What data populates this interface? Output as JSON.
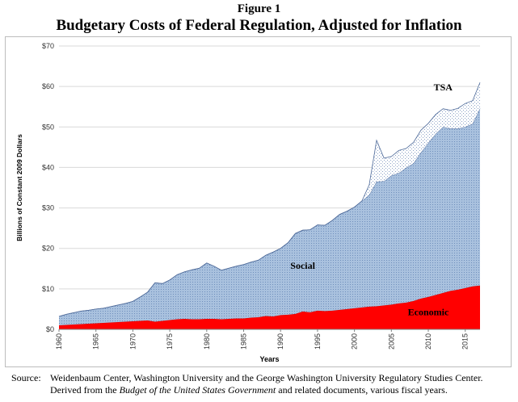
{
  "figure_label": "Figure 1",
  "title": "Budgetary Costs of Federal Regulation, Adjusted for Inflation",
  "source": {
    "label": "Source:",
    "line1": "Weidenbaum Center, Washington University and the George Washington University Regulatory Studies Center.",
    "line2_a": "Derived from the ",
    "line2_italic": "Budget of the United States Government",
    "line2_b": " and related documents, various fiscal years."
  },
  "colors": {
    "economic": "#ff0000",
    "social": "#9db7d8",
    "social_dot": "#6f8fbc",
    "tsa": "#ffffff",
    "outline": "#4f6b9a"
  },
  "chart_data": {
    "type": "area",
    "stacked": true,
    "xlabel": "Years",
    "ylabel": "Billions of Constant 2009 Dollars",
    "xlim": [
      1960,
      2017
    ],
    "ylim": [
      0,
      70
    ],
    "yticks": [
      "$0",
      "$10",
      "$20",
      "$30",
      "$40",
      "$50",
      "$60",
      "$70"
    ],
    "ytick_values": [
      0,
      10,
      20,
      30,
      40,
      50,
      60,
      70
    ],
    "xticks": [
      "1960",
      "1965",
      "1970",
      "1975",
      "1980",
      "1985",
      "1990",
      "1995",
      "2000",
      "2005",
      "2010",
      "2015"
    ],
    "xtick_values": [
      1960,
      1965,
      1970,
      1975,
      1980,
      1985,
      1990,
      1995,
      2000,
      2005,
      2010,
      2015
    ],
    "grid": "horizontal",
    "x": [
      1960,
      1961,
      1962,
      1963,
      1964,
      1965,
      1966,
      1967,
      1968,
      1969,
      1970,
      1971,
      1972,
      1973,
      1974,
      1975,
      1976,
      1977,
      1978,
      1979,
      1980,
      1981,
      1982,
      1983,
      1984,
      1985,
      1986,
      1987,
      1988,
      1989,
      1990,
      1991,
      1992,
      1993,
      1994,
      1995,
      1996,
      1997,
      1998,
      1999,
      2000,
      2001,
      2002,
      2003,
      2004,
      2005,
      2006,
      2007,
      2008,
      2009,
      2010,
      2011,
      2012,
      2013,
      2014,
      2015,
      2016,
      2017
    ],
    "series": [
      {
        "name": "Economic",
        "values": [
          1.0,
          1.1,
          1.2,
          1.3,
          1.4,
          1.5,
          1.6,
          1.7,
          1.8,
          1.9,
          2.0,
          2.1,
          2.2,
          1.9,
          2.1,
          2.3,
          2.5,
          2.6,
          2.5,
          2.5,
          2.6,
          2.6,
          2.5,
          2.6,
          2.7,
          2.7,
          2.9,
          3.0,
          3.3,
          3.2,
          3.5,
          3.6,
          3.8,
          4.4,
          4.2,
          4.6,
          4.5,
          4.6,
          4.8,
          5.0,
          5.2,
          5.4,
          5.6,
          5.7,
          5.9,
          6.1,
          6.4,
          6.6,
          7.0,
          7.6,
          8.0,
          8.5,
          9.0,
          9.5,
          9.8,
          10.2,
          10.6,
          10.8
        ]
      },
      {
        "name": "Social",
        "values": [
          2.2,
          2.6,
          2.9,
          3.2,
          3.3,
          3.5,
          3.6,
          3.9,
          4.2,
          4.5,
          4.9,
          5.9,
          7.0,
          9.6,
          9.2,
          9.9,
          11.0,
          11.6,
          12.2,
          12.6,
          13.8,
          13.0,
          12.1,
          12.5,
          12.9,
          13.3,
          13.7,
          14.1,
          15.0,
          15.9,
          16.5,
          17.8,
          19.9,
          20.1,
          20.4,
          21.2,
          21.2,
          22.3,
          23.6,
          24.2,
          25.0,
          26.3,
          27.6,
          30.8,
          30.7,
          31.9,
          32.2,
          33.3,
          34.0,
          36.1,
          38.0,
          39.8,
          41.0,
          40.1,
          39.8,
          39.8,
          40.2,
          43.8
        ]
      },
      {
        "name": "TSA",
        "values": [
          0,
          0,
          0,
          0,
          0,
          0,
          0,
          0,
          0,
          0,
          0,
          0,
          0,
          0,
          0,
          0,
          0,
          0,
          0,
          0,
          0,
          0,
          0,
          0,
          0,
          0,
          0,
          0,
          0,
          0,
          0,
          0,
          0,
          0,
          0,
          0,
          0,
          0,
          0,
          0,
          0,
          0,
          2.5,
          10.2,
          5.7,
          4.7,
          5.6,
          4.8,
          5.2,
          5.5,
          4.9,
          4.8,
          4.5,
          4.5,
          5.0,
          5.8,
          5.7,
          6.4
        ]
      }
    ],
    "annotations": [
      {
        "text": "Economic",
        "x": 2010,
        "y": 3.5
      },
      {
        "text": "Social",
        "x": 1993,
        "y": 15
      },
      {
        "text": "TSA",
        "x": 2012,
        "y": 59
      }
    ]
  }
}
